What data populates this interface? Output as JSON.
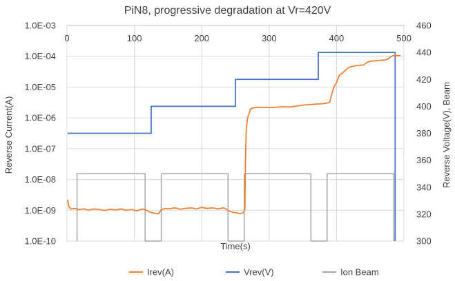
{
  "chart_data": {
    "type": "line",
    "title": "PiN8, progressive degradation at Vr=420V",
    "xlabel": "Time(s)",
    "ylabel_left": "Reverse Current(A)",
    "ylabel_right": "Reverse Voltage(V), Beam",
    "x_ticks": [
      "0",
      "100",
      "200",
      "300",
      "400",
      "500"
    ],
    "xlim": [
      0,
      500
    ],
    "y_left": {
      "scale": "log",
      "ylim": [
        1e-10,
        0.001
      ],
      "ticks": [
        {
          "value": 0.001,
          "label": "1.0E-03"
        },
        {
          "value": 0.0001,
          "label": "1.0E-04"
        },
        {
          "value": 1e-05,
          "label": "1.0E-05"
        },
        {
          "value": 1e-06,
          "label": "1.0E-06"
        },
        {
          "value": 1e-07,
          "label": "1.0E-07"
        },
        {
          "value": 1e-08,
          "label": "1.0E-08"
        },
        {
          "value": 1e-09,
          "label": "1.0E-09"
        },
        {
          "value": 1e-10,
          "label": "1.0E-10"
        }
      ]
    },
    "y_right": {
      "scale": "linear",
      "ylim": [
        300,
        460
      ],
      "ticks": [
        "460",
        "440",
        "420",
        "400",
        "380",
        "360",
        "340",
        "320",
        "300"
      ]
    },
    "grid": true,
    "legend_position": "bottom",
    "series": [
      {
        "name": "Irev(A)",
        "axis": "left",
        "color": "#ED7D31",
        "x": [
          1,
          3,
          6,
          12,
          18,
          25,
          32,
          40,
          48,
          56,
          64,
          72,
          80,
          88,
          96,
          104,
          112,
          118,
          124,
          130,
          136,
          140,
          146,
          152,
          160,
          168,
          176,
          184,
          192,
          200,
          208,
          216,
          224,
          232,
          236,
          240,
          246,
          252,
          258,
          262,
          264,
          265,
          266,
          268,
          270,
          272,
          276,
          282,
          290,
          300,
          310,
          320,
          330,
          340,
          350,
          360,
          370,
          380,
          385,
          390,
          392,
          396,
          400,
          404,
          410,
          416,
          420,
          430,
          440,
          446,
          452,
          460,
          470,
          476,
          480,
          484,
          487,
          490,
          495
        ],
        "y": [
          2.2e-09,
          1.3e-09,
          1.1e-09,
          1.15e-09,
          1.05e-09,
          1.12e-09,
          1e-09,
          1.1e-09,
          1.05e-09,
          9.8e-10,
          1.08e-09,
          1.02e-09,
          1.1e-09,
          1e-09,
          1.05e-09,
          9.6e-10,
          1.1e-09,
          1e-09,
          8.5e-10,
          8e-10,
          7.6e-10,
          1.05e-09,
          1.15e-09,
          1.1e-09,
          1.2e-09,
          1.08e-09,
          1.15e-09,
          1.2e-09,
          1.1e-09,
          1.25e-09,
          1.15e-09,
          1.2e-09,
          1.1e-09,
          1.2e-09,
          1.1e-09,
          9.5e-10,
          8.6e-10,
          8.2e-10,
          7.8e-10,
          8.5e-10,
          1.1e-09,
          5e-08,
          4e-07,
          1e-06,
          1.3e-06,
          1.9e-06,
          2.1e-06,
          2.2e-06,
          2.2e-06,
          2.15e-06,
          2.2e-06,
          2.3e-06,
          2.25e-06,
          2.4e-06,
          2.6e-06,
          2.7e-06,
          2.8e-06,
          2.9e-06,
          3e-06,
          3.2e-06,
          5e-06,
          1e-05,
          1.4e-05,
          2.4e-05,
          3e-05,
          4e-05,
          4.5e-05,
          5e-05,
          5.2e-05,
          6.5e-05,
          7e-05,
          7.2e-05,
          7.5e-05,
          8e-05,
          9.5e-05,
          0.000105,
          0.000105,
          0.000105,
          0.000105
        ]
      },
      {
        "name": "Vrev(V)",
        "axis": "right",
        "color": "#4472C4",
        "x": [
          1,
          125,
          125,
          250,
          250,
          373,
          373,
          487,
          487
        ],
        "y": [
          380,
          380,
          400,
          400,
          420,
          420,
          440,
          440,
          300
        ]
      },
      {
        "name": "Ion Beam",
        "axis": "right",
        "color": "#A5A5A5",
        "x": [
          15,
          15,
          116,
          116,
          140,
          140,
          239,
          239,
          263,
          263,
          362,
          362,
          386,
          386,
          485,
          485
        ],
        "y": [
          300,
          350,
          350,
          300,
          300,
          350,
          350,
          300,
          300,
          350,
          350,
          300,
          300,
          350,
          350,
          300
        ]
      }
    ]
  }
}
